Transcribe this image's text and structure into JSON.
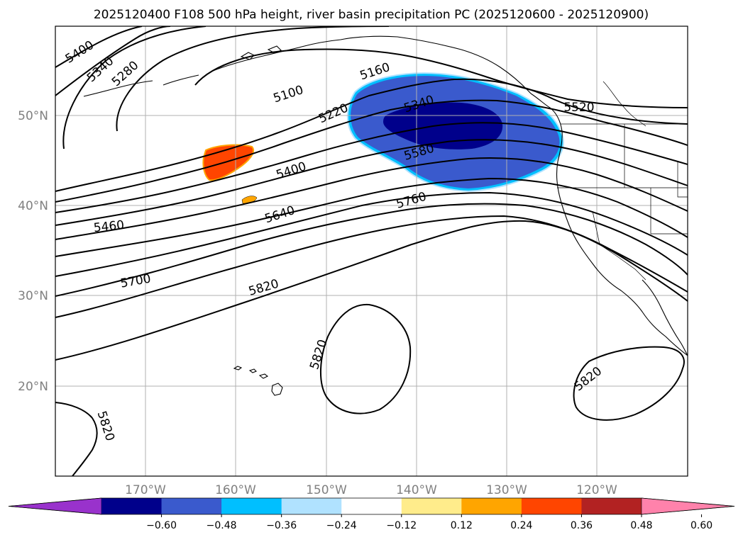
{
  "title": "2025120400 F108 500 hPa height, river basin precipitation PC (2025120600 - 2025120900)",
  "map": {
    "lat_labels": [
      {
        "id": "50n",
        "text": "50°N"
      },
      {
        "id": "40n",
        "text": "40°N"
      },
      {
        "id": "30n",
        "text": "30°N"
      },
      {
        "id": "20n",
        "text": "20°N"
      }
    ],
    "lon_labels": [
      {
        "id": "170w",
        "text": "170°W"
      },
      {
        "id": "160w",
        "text": "160°W"
      },
      {
        "id": "150w",
        "text": "150°W"
      },
      {
        "id": "140w",
        "text": "140°W"
      },
      {
        "id": "130w",
        "text": "130°W"
      },
      {
        "id": "120w",
        "text": "120°W"
      }
    ]
  },
  "contour_labels": [
    {
      "id": "5400-nw",
      "text": "5400"
    },
    {
      "id": "5340-nw",
      "text": "5340"
    },
    {
      "id": "5280",
      "text": "5280"
    },
    {
      "id": "5100",
      "text": "5100"
    },
    {
      "id": "5160",
      "text": "5160"
    },
    {
      "id": "5220",
      "text": "5220"
    },
    {
      "id": "5340-e",
      "text": "5340"
    },
    {
      "id": "5520",
      "text": "5520"
    },
    {
      "id": "5580",
      "text": "5580"
    },
    {
      "id": "5400-c",
      "text": "5400"
    },
    {
      "id": "5760",
      "text": "5760"
    },
    {
      "id": "5640",
      "text": "5640"
    },
    {
      "id": "5460",
      "text": "5460"
    },
    {
      "id": "5700",
      "text": "5700"
    },
    {
      "id": "5820-c",
      "text": "5820"
    },
    {
      "id": "5820-hi",
      "text": "5820"
    },
    {
      "id": "5820-e",
      "text": "5820"
    },
    {
      "id": "5820-sw",
      "text": "5820"
    }
  ],
  "colorbar": {
    "colors": [
      "#9932cc",
      "#00008b",
      "#3a5acd",
      "#00bfff",
      "#b0e2ff",
      "#ffffff",
      "#ffec8b",
      "#ffa500",
      "#ff4500",
      "#b22222",
      "#ff82ab"
    ],
    "ticks": [
      "−0.60",
      "−0.48",
      "−0.36",
      "−0.24",
      "−0.12",
      "0.12",
      "0.24",
      "0.36",
      "0.48",
      "0.60"
    ]
  },
  "colors": {
    "strong_negative": "#00008b",
    "negative": "#3a5acd",
    "weak_negative": "#00bfff",
    "positive": "#ff4500",
    "weak_positive": "#ffa500"
  }
}
